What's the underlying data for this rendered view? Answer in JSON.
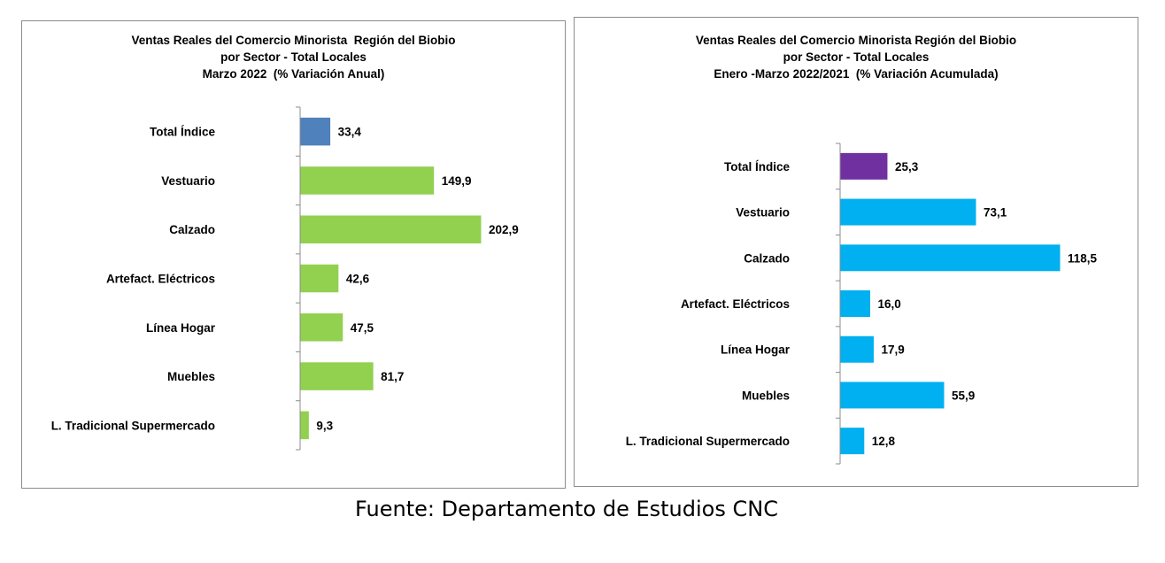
{
  "chart_data": [
    {
      "type": "bar",
      "orientation": "horizontal",
      "title_lines": [
        "Ventas Reales del Comercio Minorista  Región del Biobio",
        "por Sector - Total Locales",
        "Marzo 2022  (% Variación Anual)"
      ],
      "categories": [
        "Total Índice",
        "Vestuario",
        "Calzado",
        "Artefact. Eléctricos",
        "Línea Hogar",
        "Muebles",
        "L. Tradicional Supermercado"
      ],
      "values": [
        33.4,
        149.9,
        202.9,
        42.6,
        47.5,
        81.7,
        9.3
      ],
      "value_labels": [
        "33,4",
        "149,9",
        "202,9",
        "42,6",
        "47,5",
        "81,7",
        "9,3"
      ],
      "bar_colors": [
        "#4f81bd",
        "#92d050",
        "#92d050",
        "#92d050",
        "#92d050",
        "#92d050",
        "#92d050"
      ],
      "xlim": [
        0,
        202.9
      ],
      "grid": false,
      "legend": false
    },
    {
      "type": "bar",
      "orientation": "horizontal",
      "title_lines": [
        "Ventas Reales del Comercio Minorista Región del Biobio",
        "por Sector - Total Locales",
        "Enero -Marzo 2022/2021  (% Variación Acumulada)"
      ],
      "categories": [
        "Total Índice",
        "Vestuario",
        "Calzado",
        "Artefact. Eléctricos",
        "Línea Hogar",
        "Muebles",
        "L. Tradicional Supermercado"
      ],
      "values": [
        25.3,
        73.1,
        118.5,
        16.0,
        17.9,
        55.9,
        12.8
      ],
      "value_labels": [
        "25,3",
        "73,1",
        "118,5",
        "16,0",
        "17,9",
        "55,9",
        "12,8"
      ],
      "bar_colors": [
        "#7030a0",
        "#00b0f0",
        "#00b0f0",
        "#00b0f0",
        "#00b0f0",
        "#00b0f0",
        "#00b0f0"
      ],
      "xlim": [
        0,
        118.5
      ],
      "grid": false,
      "legend": false
    }
  ],
  "footer": "Fuente: Departamento de Estudios CNC"
}
